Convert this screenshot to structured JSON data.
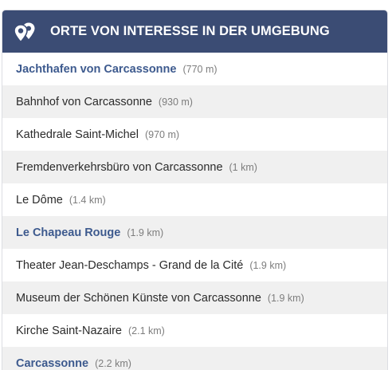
{
  "header": {
    "title": "ORTE VON INTERESSE IN DER UMGEBUNG",
    "icon": "map-pins-icon",
    "background": "#3b4c74"
  },
  "places": [
    {
      "name": "Jachthafen von Carcassonne",
      "distance": "(770 m)",
      "link": true
    },
    {
      "name": "Bahnhof von Carcassonne",
      "distance": "(930 m)",
      "link": false
    },
    {
      "name": "Kathedrale Saint-Michel",
      "distance": "(970 m)",
      "link": false
    },
    {
      "name": "Fremdenverkehrsbüro von Carcassonne",
      "distance": "(1 km)",
      "link": false
    },
    {
      "name": "Le Dôme",
      "distance": "(1.4 km)",
      "link": false
    },
    {
      "name": "Le Chapeau Rouge",
      "distance": "(1.9 km)",
      "link": true
    },
    {
      "name": "Theater Jean-Deschamps - Grand de la Cité",
      "distance": "(1.9 km)",
      "link": false
    },
    {
      "name": "Museum der Schönen Künste von Carcassonne",
      "distance": "(1.9 km)",
      "link": false
    },
    {
      "name": "Kirche Saint-Nazaire",
      "distance": "(2.1 km)",
      "link": false
    },
    {
      "name": "Carcassonne",
      "distance": "(2.2 km)",
      "link": true
    }
  ]
}
